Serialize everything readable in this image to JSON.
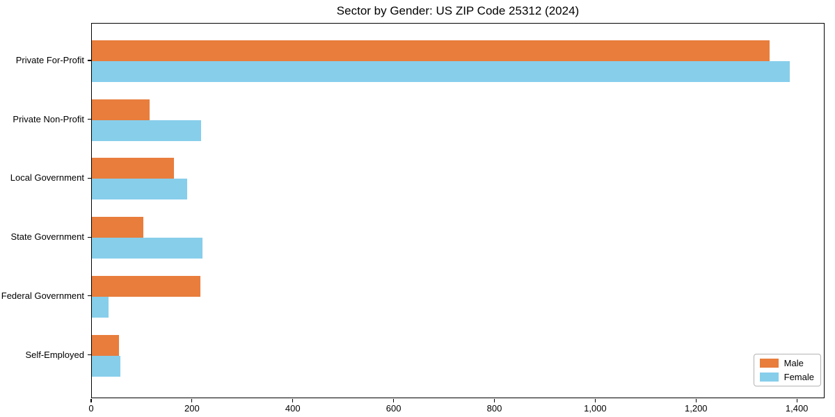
{
  "chart_data": {
    "type": "bar",
    "orientation": "horizontal",
    "title": "Sector by Gender: US ZIP Code 25312 (2024)",
    "categories": [
      "Private For-Profit",
      "Private Non-Profit",
      "Local Government",
      "State Government",
      "Federal Government",
      "Self-Employed"
    ],
    "series": [
      {
        "name": "Male",
        "color": "#e87d3c",
        "values": [
          1345,
          115,
          163,
          102,
          215,
          54
        ]
      },
      {
        "name": "Female",
        "color": "#87ceeb",
        "values": [
          1385,
          217,
          189,
          220,
          33,
          56
        ]
      }
    ],
    "xlabel": "",
    "ylabel": "",
    "xlim": [
      0,
      1455
    ],
    "xticks": [
      {
        "value": 0,
        "label": "0"
      },
      {
        "value": 200,
        "label": "200"
      },
      {
        "value": 400,
        "label": "400"
      },
      {
        "value": 600,
        "label": "600"
      },
      {
        "value": 800,
        "label": "800"
      },
      {
        "value": 1000,
        "label": "1,000"
      },
      {
        "value": 1200,
        "label": "1,200"
      },
      {
        "value": 1400,
        "label": "1,400"
      }
    ],
    "grid": false,
    "legend_position": "lower right",
    "axis_color": "#000000",
    "legend_border_color": "#b3b3b3",
    "background_color": "#ffffff"
  }
}
